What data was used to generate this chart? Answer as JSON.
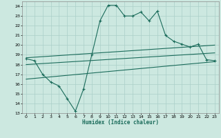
{
  "x": [
    0,
    1,
    2,
    3,
    4,
    5,
    6,
    7,
    8,
    9,
    10,
    11,
    12,
    13,
    14,
    15,
    16,
    17,
    18,
    19,
    20,
    21,
    22,
    23
  ],
  "y_main": [
    18.6,
    18.4,
    17.0,
    16.2,
    15.8,
    14.5,
    13.2,
    15.5,
    19.0,
    22.5,
    24.1,
    24.1,
    23.0,
    23.0,
    23.4,
    22.5,
    23.5,
    21.0,
    20.4,
    20.1,
    19.8,
    20.1,
    18.5,
    18.4
  ],
  "trend1_x": [
    0,
    23
  ],
  "trend1_y": [
    18.7,
    20.0
  ],
  "trend2_x": [
    0,
    23
  ],
  "trend2_y": [
    18.0,
    19.2
  ],
  "trend3_x": [
    0,
    23
  ],
  "trend3_y": [
    16.5,
    18.3
  ],
  "bg_color": "#cce8e0",
  "line_color": "#1a6b5a",
  "grid_color": "#aacfc8",
  "xlabel": "Humidex (Indice chaleur)",
  "ylim": [
    13,
    24.5
  ],
  "xlim": [
    -0.5,
    23.5
  ],
  "yticks": [
    13,
    14,
    15,
    16,
    17,
    18,
    19,
    20,
    21,
    22,
    23,
    24
  ],
  "xticks": [
    0,
    1,
    2,
    3,
    4,
    5,
    6,
    7,
    8,
    9,
    10,
    11,
    12,
    13,
    14,
    15,
    16,
    17,
    18,
    19,
    20,
    21,
    22,
    23
  ]
}
